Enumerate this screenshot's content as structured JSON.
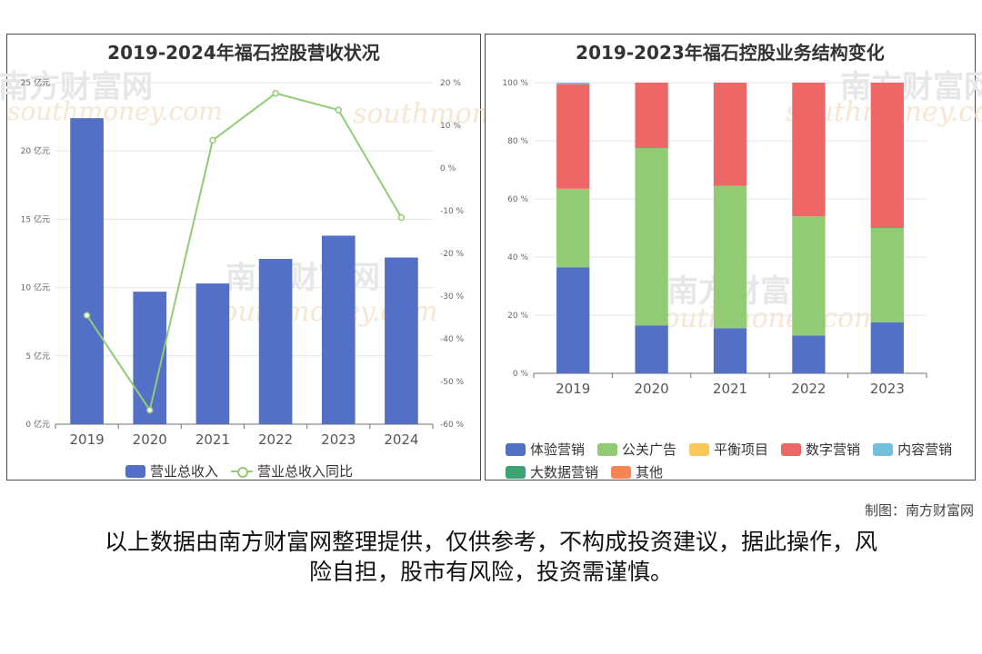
{
  "credit": "制图：南方财富网",
  "disclaimer_line1": "以上数据由南方财富网整理提供，仅供参考，不构成投资建议，据此操作，风",
  "disclaimer_line2": "险自担，股市有风险，投资需谨慎。",
  "watermark": {
    "text": "南方财富网",
    "script": "southmoney.com"
  },
  "chart_data": [
    {
      "type": "bar",
      "title": "2019-2024年福石控股营收状况",
      "categories": [
        "2019",
        "2020",
        "2021",
        "2022",
        "2023",
        "2024"
      ],
      "y_left": {
        "ticks": [
          "0 亿元",
          "5 亿元",
          "10 亿元",
          "15 亿元",
          "20 亿元",
          "25 亿元"
        ],
        "ylim": [
          0,
          25
        ]
      },
      "y_right": {
        "ticks": [
          "-60 %",
          "-50 %",
          "-40 %",
          "-30 %",
          "-20 %",
          "-10 %",
          "0 %",
          "10 %",
          "20 %"
        ],
        "ylim": [
          -60,
          20
        ]
      },
      "series": [
        {
          "name": "营业总收入",
          "kind": "bar",
          "axis": "left",
          "color": "#5470c6",
          "values": [
            22.4,
            9.7,
            10.3,
            12.1,
            13.8,
            12.2
          ]
        },
        {
          "name": "营业总收入同比",
          "kind": "line",
          "axis": "right",
          "color": "#91cc75",
          "values": [
            -34.5,
            -56.7,
            6.5,
            17.5,
            13.6,
            -11.6
          ]
        }
      ]
    },
    {
      "type": "bar",
      "stacked": true,
      "title": "2019-2023年福石控股业务结构变化",
      "categories": [
        "2019",
        "2020",
        "2021",
        "2022",
        "2023"
      ],
      "y_ticks": [
        "0 %",
        "20 %",
        "40 %",
        "60 %",
        "80 %",
        "100 %"
      ],
      "ylim": [
        0,
        100
      ],
      "series": [
        {
          "name": "体验营销",
          "color": "#5470c6",
          "values": [
            36.5,
            16.5,
            15.5,
            13.0,
            17.5
          ]
        },
        {
          "name": "公关广告",
          "color": "#91cc75",
          "values": [
            27.0,
            61.0,
            49.0,
            41.0,
            32.5
          ]
        },
        {
          "name": "平衡项目",
          "color": "#fac858",
          "values": [
            0,
            0,
            0,
            0,
            0
          ]
        },
        {
          "name": "数字营销",
          "color": "#ee6666",
          "values": [
            36.0,
            22.5,
            35.5,
            46.0,
            50.0
          ]
        },
        {
          "name": "内容营销",
          "color": "#73c0de",
          "values": [
            0.5,
            0,
            0,
            0,
            0
          ]
        },
        {
          "name": "大数据营销",
          "color": "#3ba272",
          "values": [
            0,
            0,
            0,
            0,
            0
          ]
        },
        {
          "name": "其他",
          "color": "#fc8452",
          "values": [
            0,
            0,
            0,
            0,
            0
          ]
        }
      ]
    }
  ]
}
